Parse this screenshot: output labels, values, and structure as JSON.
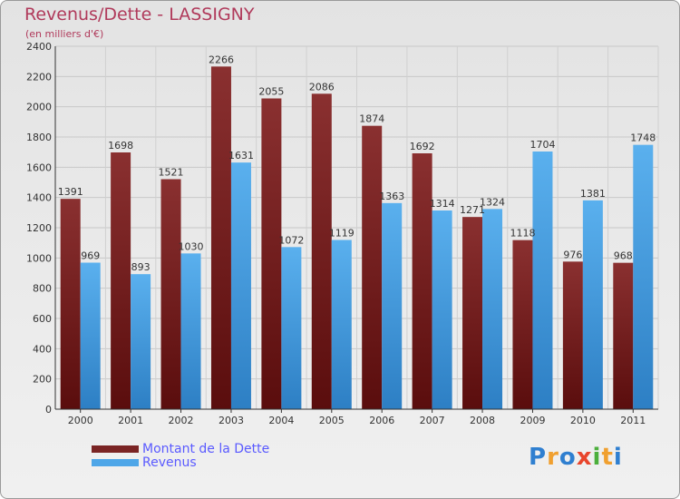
{
  "header": {
    "title": "Revenus/Dette - LASSIGNY",
    "subtitle": "(en milliers d'€)"
  },
  "logo": {
    "text": "Proxiti",
    "letters": [
      {
        "char": "P",
        "color": "#2f7fd0"
      },
      {
        "char": "r",
        "color": "#f0a030"
      },
      {
        "char": "o",
        "color": "#2f7fd0"
      },
      {
        "char": "x",
        "color": "#e8452c"
      },
      {
        "char": "i",
        "color": "#4caf3c"
      },
      {
        "char": "t",
        "color": "#f0a030"
      },
      {
        "char": "i",
        "color": "#2f7fd0"
      }
    ]
  },
  "chart_data": {
    "type": "bar",
    "title": "Revenus/Dette - LASSIGNY",
    "subtitle": "(en milliers d'€)",
    "categories": [
      "2000",
      "2001",
      "2002",
      "2003",
      "2004",
      "2005",
      "2006",
      "2007",
      "2008",
      "2009",
      "2010",
      "2011"
    ],
    "series": [
      {
        "name": "Montant de la Dette",
        "color": "#7a2424",
        "values": [
          1391,
          1698,
          1521,
          2266,
          2055,
          2086,
          1874,
          1692,
          1271,
          1118,
          976,
          968
        ]
      },
      {
        "name": "Revenus",
        "color": "#4ea6e8",
        "values": [
          969,
          893,
          1030,
          1631,
          1072,
          1119,
          1363,
          1314,
          1324,
          1704,
          1381,
          1748
        ]
      }
    ],
    "ylim": [
      0,
      2400
    ],
    "yticks": [
      0,
      200,
      400,
      600,
      800,
      1000,
      1200,
      1400,
      1600,
      1800,
      2000,
      2200,
      2400
    ],
    "grid": true,
    "legend_position": "bottom-left"
  }
}
